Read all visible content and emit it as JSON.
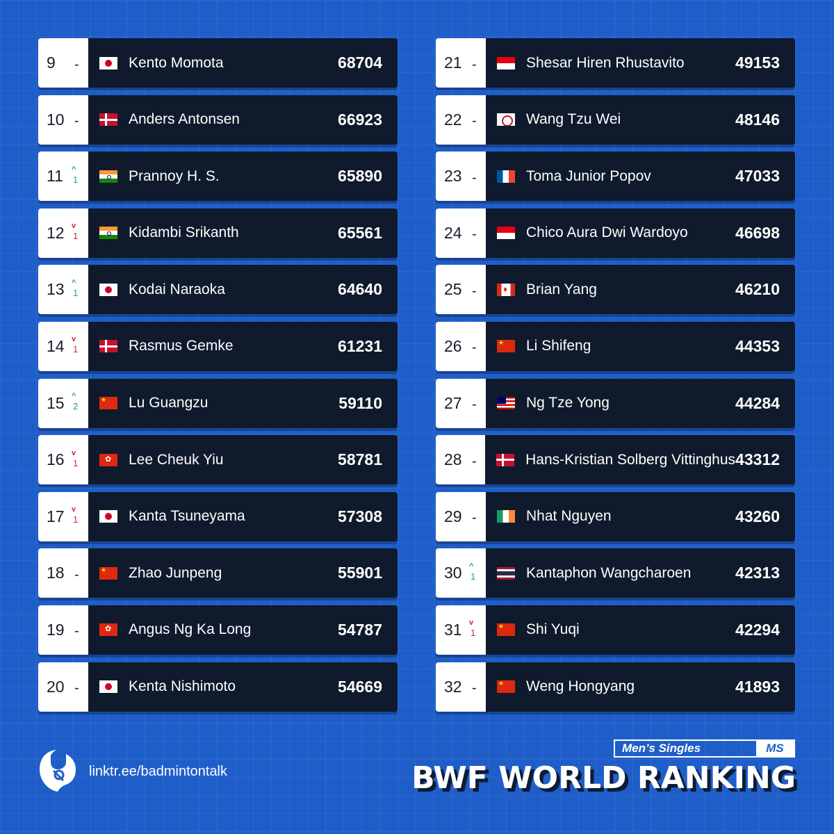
{
  "left_column": [
    {
      "rank": "9",
      "change": "-",
      "direction": "none",
      "flag": "jp",
      "name": "Kento Momota",
      "points": "68704"
    },
    {
      "rank": "10",
      "change": "-",
      "direction": "none",
      "flag": "dk",
      "name": "Anders Antonsen",
      "points": "66923"
    },
    {
      "rank": "11",
      "change": "1",
      "direction": "up",
      "flag": "in",
      "name": "Prannoy H. S.",
      "points": "65890"
    },
    {
      "rank": "12",
      "change": "1",
      "direction": "down",
      "flag": "in",
      "name": "Kidambi Srikanth",
      "points": "65561"
    },
    {
      "rank": "13",
      "change": "1",
      "direction": "up",
      "flag": "jp",
      "name": "Kodai Naraoka",
      "points": "64640"
    },
    {
      "rank": "14",
      "change": "1",
      "direction": "down",
      "flag": "dk",
      "name": "Rasmus Gemke",
      "points": "61231"
    },
    {
      "rank": "15",
      "change": "2",
      "direction": "up",
      "flag": "cn",
      "name": "Lu Guangzu",
      "points": "59110"
    },
    {
      "rank": "16",
      "change": "1",
      "direction": "down",
      "flag": "hk",
      "name": "Lee Cheuk Yiu",
      "points": "58781"
    },
    {
      "rank": "17",
      "change": "1",
      "direction": "down",
      "flag": "jp",
      "name": "Kanta Tsuneyama",
      "points": "57308"
    },
    {
      "rank": "18",
      "change": "-",
      "direction": "none",
      "flag": "cn",
      "name": "Zhao Junpeng",
      "points": "55901"
    },
    {
      "rank": "19",
      "change": "-",
      "direction": "none",
      "flag": "hk",
      "name": "Angus Ng Ka Long",
      "points": "54787"
    },
    {
      "rank": "20",
      "change": "-",
      "direction": "none",
      "flag": "jp",
      "name": "Kenta Nishimoto",
      "points": "54669"
    }
  ],
  "right_column": [
    {
      "rank": "21",
      "change": "-",
      "direction": "none",
      "flag": "id",
      "name": "Shesar Hiren Rhustavito",
      "points": "49153"
    },
    {
      "rank": "22",
      "change": "-",
      "direction": "none",
      "flag": "tw",
      "name": "Wang Tzu Wei",
      "points": "48146"
    },
    {
      "rank": "23",
      "change": "-",
      "direction": "none",
      "flag": "fr",
      "name": "Toma Junior Popov",
      "points": "47033"
    },
    {
      "rank": "24",
      "change": "-",
      "direction": "none",
      "flag": "id",
      "name": "Chico Aura Dwi Wardoyo",
      "points": "46698"
    },
    {
      "rank": "25",
      "change": "-",
      "direction": "none",
      "flag": "ca",
      "name": "Brian Yang",
      "points": "46210"
    },
    {
      "rank": "26",
      "change": "-",
      "direction": "none",
      "flag": "cn",
      "name": "Li Shifeng",
      "points": "44353"
    },
    {
      "rank": "27",
      "change": "-",
      "direction": "none",
      "flag": "my",
      "name": "Ng Tze Yong",
      "points": "44284"
    },
    {
      "rank": "28",
      "change": "-",
      "direction": "none",
      "flag": "dk",
      "name": "Hans-Kristian Solberg Vittinghus",
      "points": "43312"
    },
    {
      "rank": "29",
      "change": "-",
      "direction": "none",
      "flag": "ie",
      "name": "Nhat Nguyen",
      "points": "43260"
    },
    {
      "rank": "30",
      "change": "1",
      "direction": "up",
      "flag": "th",
      "name": "Kantaphon Wangcharoen",
      "points": "42313"
    },
    {
      "rank": "31",
      "change": "1",
      "direction": "down",
      "flag": "cn",
      "name": "Shi Yuqi",
      "points": "42294"
    },
    {
      "rank": "32",
      "change": "-",
      "direction": "none",
      "flag": "cn",
      "name": "Weng Hongyang",
      "points": "41893"
    }
  ],
  "footer": {
    "link": "linktr.ee/badmintontalk",
    "category_label": "Men’s Singles",
    "category_code": "MS",
    "title": "BWF WORLD RANKING"
  },
  "colors": {
    "background": "#1f5ec9",
    "row_dark": "#0f1a2c",
    "up": "#1fa84a",
    "down": "#d52232"
  },
  "icons": {
    "logo": "shuttlecock-logo-icon",
    "arrow_up": "chevron-up-icon",
    "arrow_down": "chevron-down-icon"
  }
}
